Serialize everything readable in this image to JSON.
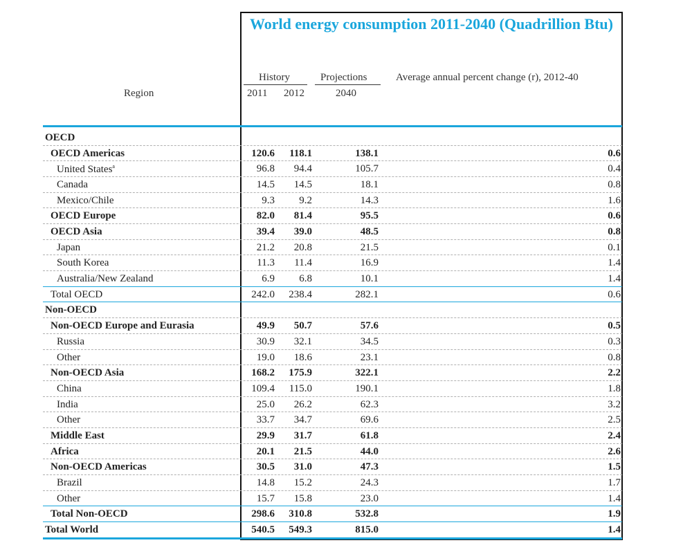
{
  "colors": {
    "title": "#1aa6dc",
    "accent_line": "#1aa6dc",
    "dashed_line": "#b0b0b0",
    "text": "#222222"
  },
  "chart_data": {
    "type": "table",
    "title": "World energy consumption 2011-2040 (Quadrillion Btu)",
    "header": {
      "region": "Region",
      "history": "History",
      "projections": "Projections",
      "change": "Average annual percent change (r), 2012-40",
      "y2011": "2011",
      "y2012": "2012",
      "y2040": "2040"
    },
    "rows": [
      {
        "label": "OECD",
        "level": 0,
        "bold": true,
        "section": true,
        "values": null
      },
      {
        "label": "OECD Americas",
        "level": 1,
        "bold": true,
        "values": [
          "120.6",
          "118.1",
          "138.1",
          "0.6"
        ]
      },
      {
        "label": "United States",
        "sup": "a",
        "level": 2,
        "bold": false,
        "values": [
          "96.8",
          "94.4",
          "105.7",
          "0.4"
        ]
      },
      {
        "label": "Canada",
        "level": 2,
        "bold": false,
        "values": [
          "14.5",
          "14.5",
          "18.1",
          "0.8"
        ]
      },
      {
        "label": "Mexico/Chile",
        "level": 2,
        "bold": false,
        "values": [
          "9.3",
          "9.2",
          "14.3",
          "1.6"
        ]
      },
      {
        "label": "OECD Europe",
        "level": 1,
        "bold": true,
        "values": [
          "82.0",
          "81.4",
          "95.5",
          "0.6"
        ]
      },
      {
        "label": "OECD Asia",
        "level": 1,
        "bold": true,
        "values": [
          "39.4",
          "39.0",
          "48.5",
          "0.8"
        ]
      },
      {
        "label": "Japan",
        "level": 2,
        "bold": false,
        "values": [
          "21.2",
          "20.8",
          "21.5",
          "0.1"
        ]
      },
      {
        "label": "South Korea",
        "level": 2,
        "bold": false,
        "values": [
          "11.3",
          "11.4",
          "16.9",
          "1.4"
        ]
      },
      {
        "label": "Australia/New Zealand",
        "level": 2,
        "bold": false,
        "values": [
          "6.9",
          "6.8",
          "10.1",
          "1.4"
        ]
      },
      {
        "label": "Total OECD",
        "level": 1,
        "bold": false,
        "values": [
          "242.0",
          "238.4",
          "282.1",
          "0.6"
        ]
      },
      {
        "label": "Non-OECD",
        "level": 0,
        "bold": true,
        "section": true,
        "values": null
      },
      {
        "label": "Non-OECD Europe and Eurasia",
        "level": 1,
        "bold": true,
        "values": [
          "49.9",
          "50.7",
          "57.6",
          "0.5"
        ]
      },
      {
        "label": "Russia",
        "level": 2,
        "bold": false,
        "values": [
          "30.9",
          "32.1",
          "34.5",
          "0.3"
        ]
      },
      {
        "label": "Other",
        "level": 2,
        "bold": false,
        "values": [
          "19.0",
          "18.6",
          "23.1",
          "0.8"
        ]
      },
      {
        "label": "Non-OECD Asia",
        "level": 1,
        "bold": true,
        "values": [
          "168.2",
          "175.9",
          "322.1",
          "2.2"
        ]
      },
      {
        "label": "China",
        "level": 2,
        "bold": false,
        "values": [
          "109.4",
          "115.0",
          "190.1",
          "1.8"
        ]
      },
      {
        "label": "India",
        "level": 2,
        "bold": false,
        "values": [
          "25.0",
          "26.2",
          "62.3",
          "3.2"
        ]
      },
      {
        "label": "Other",
        "level": 2,
        "bold": false,
        "values": [
          "33.7",
          "34.7",
          "69.6",
          "2.5"
        ]
      },
      {
        "label": "Middle East",
        "level": 1,
        "bold": true,
        "values": [
          "29.9",
          "31.7",
          "61.8",
          "2.4"
        ]
      },
      {
        "label": "Africa",
        "level": 1,
        "bold": true,
        "values": [
          "20.1",
          "21.5",
          "44.0",
          "2.6"
        ]
      },
      {
        "label": "Non-OECD Americas",
        "level": 1,
        "bold": true,
        "values": [
          "30.5",
          "31.0",
          "47.3",
          "1.5"
        ]
      },
      {
        "label": "Brazil",
        "level": 2,
        "bold": false,
        "values": [
          "14.8",
          "15.2",
          "24.3",
          "1.7"
        ]
      },
      {
        "label": "Other",
        "level": 2,
        "bold": false,
        "values": [
          "15.7",
          "15.8",
          "23.0",
          "1.4"
        ]
      },
      {
        "label": "Total Non-OECD",
        "level": 1,
        "bold": true,
        "values": [
          "298.6",
          "310.8",
          "532.8",
          "1.9"
        ]
      },
      {
        "label": "Total World",
        "level": 0,
        "bold": true,
        "values": [
          "540.5",
          "549.3",
          "815.0",
          "1.4"
        ]
      }
    ]
  }
}
